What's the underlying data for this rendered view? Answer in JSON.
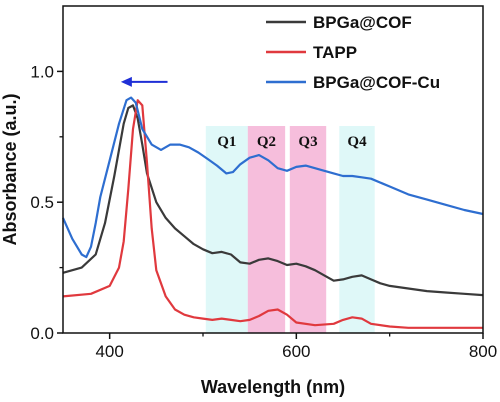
{
  "chart_data": {
    "type": "line",
    "title": "",
    "xlabel": "Wavelength (nm)",
    "ylabel": "Absorbance (a.u.)",
    "xlim": [
      350,
      800
    ],
    "ylim": [
      0,
      1.25
    ],
    "xticks": [
      400,
      600,
      800
    ],
    "xticks_minor": [
      500,
      700
    ],
    "yticks": [
      0.0,
      0.5,
      1.0
    ],
    "ytick_labels": [
      "0.0",
      "0.5",
      "1.0"
    ],
    "grid": false,
    "legend_position": "top-right",
    "series": [
      {
        "name": "BPGa@COF",
        "color": "#3a3a3a",
        "x": [
          350,
          370,
          385,
          395,
          405,
          415,
          420,
          425,
          430,
          435,
          440,
          450,
          460,
          470,
          480,
          490,
          500,
          510,
          520,
          530,
          540,
          550,
          560,
          570,
          580,
          590,
          600,
          610,
          620,
          630,
          640,
          650,
          660,
          670,
          680,
          690,
          700,
          720,
          740,
          760,
          780,
          800
        ],
        "y": [
          0.23,
          0.25,
          0.3,
          0.42,
          0.6,
          0.8,
          0.86,
          0.87,
          0.82,
          0.72,
          0.61,
          0.5,
          0.44,
          0.4,
          0.37,
          0.34,
          0.32,
          0.305,
          0.31,
          0.3,
          0.27,
          0.265,
          0.28,
          0.285,
          0.275,
          0.26,
          0.265,
          0.255,
          0.24,
          0.22,
          0.2,
          0.205,
          0.215,
          0.22,
          0.205,
          0.19,
          0.18,
          0.17,
          0.16,
          0.155,
          0.15,
          0.145
        ]
      },
      {
        "name": "TAPP",
        "color": "#e0393e",
        "x": [
          350,
          380,
          400,
          410,
          415,
          420,
          425,
          430,
          435,
          440,
          445,
          450,
          460,
          470,
          480,
          490,
          500,
          510,
          520,
          530,
          540,
          550,
          560,
          570,
          580,
          590,
          600,
          620,
          640,
          650,
          660,
          670,
          680,
          700,
          720,
          740,
          760,
          780,
          800
        ],
        "y": [
          0.14,
          0.15,
          0.18,
          0.25,
          0.35,
          0.55,
          0.78,
          0.89,
          0.87,
          0.65,
          0.4,
          0.24,
          0.14,
          0.09,
          0.07,
          0.06,
          0.055,
          0.05,
          0.055,
          0.05,
          0.045,
          0.05,
          0.065,
          0.085,
          0.09,
          0.07,
          0.04,
          0.03,
          0.035,
          0.05,
          0.06,
          0.055,
          0.035,
          0.025,
          0.02,
          0.02,
          0.02,
          0.02,
          0.02
        ]
      },
      {
        "name": "BPGa@COF-Cu",
        "color": "#2e6ed0",
        "x": [
          350,
          360,
          370,
          375,
          380,
          385,
          390,
          400,
          410,
          418,
          423,
          428,
          435,
          445,
          455,
          465,
          475,
          485,
          495,
          505,
          515,
          525,
          532,
          540,
          550,
          560,
          570,
          580,
          590,
          600,
          610,
          620,
          630,
          640,
          650,
          660,
          670,
          680,
          700,
          720,
          740,
          760,
          780,
          800
        ],
        "y": [
          0.44,
          0.36,
          0.3,
          0.29,
          0.33,
          0.42,
          0.52,
          0.66,
          0.8,
          0.89,
          0.9,
          0.88,
          0.78,
          0.72,
          0.7,
          0.72,
          0.72,
          0.71,
          0.69,
          0.665,
          0.64,
          0.61,
          0.615,
          0.645,
          0.67,
          0.68,
          0.66,
          0.63,
          0.62,
          0.635,
          0.64,
          0.63,
          0.62,
          0.61,
          0.6,
          0.6,
          0.595,
          0.59,
          0.56,
          0.53,
          0.51,
          0.49,
          0.47,
          0.455
        ]
      }
    ],
    "bands": [
      {
        "label": "Q1",
        "start": 503,
        "end": 548,
        "color": "#d9f7f7"
      },
      {
        "label": "Q2",
        "start": 548,
        "end": 588,
        "color": "#f4b3d6"
      },
      {
        "label": "Q3",
        "start": 593,
        "end": 632,
        "color": "#f4b3d6"
      },
      {
        "label": "Q4",
        "start": 646,
        "end": 684,
        "color": "#d9f7f7"
      }
    ],
    "annotations": [
      {
        "type": "arrow",
        "from": [
          462,
          0.96
        ],
        "to": [
          412,
          0.96
        ],
        "color": "#1f2fd6"
      }
    ]
  }
}
